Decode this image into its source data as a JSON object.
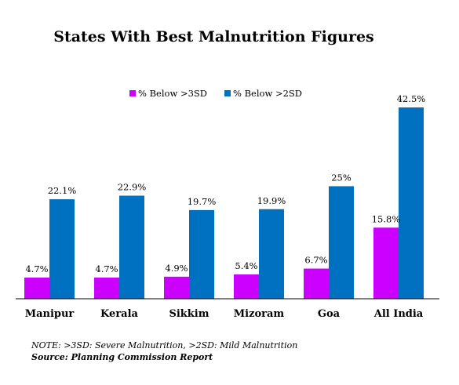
{
  "chart_data": {
    "type": "bar",
    "title": "States With Best Malnutrition Figures",
    "categories": [
      "Manipur",
      "Kerala",
      "Sikkim",
      "Mizoram",
      "Goa",
      "All India"
    ],
    "series": [
      {
        "name": "% Below >3SD",
        "color": "#cc00ff",
        "values": [
          4.7,
          4.7,
          4.9,
          5.4,
          6.7,
          15.8
        ],
        "labels": [
          "4.7%",
          "4.7%",
          "4.9%",
          "5.4%",
          "6.7%",
          "15.8%"
        ]
      },
      {
        "name": "% Below >2SD",
        "color": "#0070c0",
        "values": [
          22.1,
          22.9,
          19.7,
          19.9,
          25,
          42.5
        ],
        "labels": [
          "22.1%",
          "22.9%",
          "19.7%",
          "19.9%",
          "25%",
          "42.5%"
        ]
      }
    ],
    "ylim": [
      0,
      45
    ],
    "legend_position": "top",
    "grid": false
  },
  "footer": {
    "note": "NOTE: >3SD: Severe Malnutrition, >2SD: Mild Malnutrition",
    "source": "Source: Planning Commission Report"
  }
}
